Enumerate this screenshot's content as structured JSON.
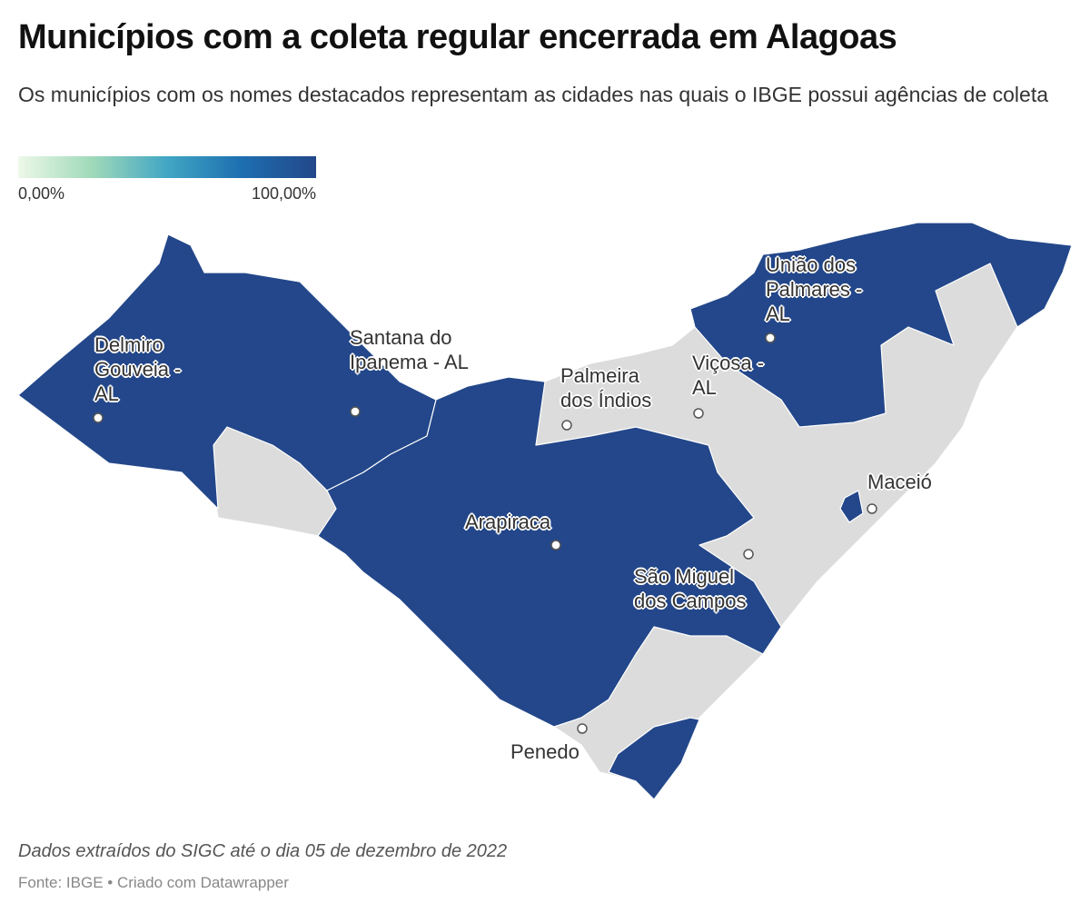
{
  "header": {
    "title": "Municípios com a coleta regular encerrada em Alagoas",
    "subtitle": "Os municípios com os nomes destacados representam as cidades nas quais o IBGE possui agências de coleta"
  },
  "legend": {
    "colors": [
      "#edf8e9",
      "#9fd9b9",
      "#41a6c4",
      "#1d6fb0",
      "#23478a"
    ],
    "min": {
      "value": 0,
      "label": "0,00%"
    },
    "max": {
      "value": 100,
      "label": "100,00%"
    }
  },
  "map": {
    "filled_color": "#23478a",
    "empty_color": "#dcdcdc",
    "cities": [
      {
        "label": "Delmiro Gouveia - AL"
      },
      {
        "label": "Santana do Ipanema - AL"
      },
      {
        "label": "Palmeira dos Índios"
      },
      {
        "label": "Viçosa - AL"
      },
      {
        "label": "União dos Palmares - AL"
      },
      {
        "label": "Arapiraca"
      },
      {
        "label": "Maceió"
      },
      {
        "label": "São Miguel dos Campos"
      },
      {
        "label": "Penedo"
      }
    ]
  },
  "footer": {
    "note": "Dados extraídos do SIGC até o dia 05 de dezembro de 2022",
    "source": "Fonte: IBGE • Criado com Datawrapper"
  }
}
